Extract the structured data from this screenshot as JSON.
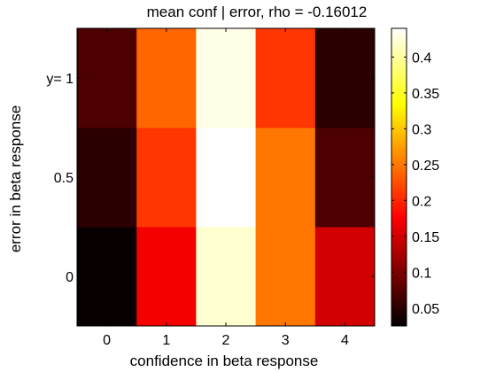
{
  "chart_data": {
    "type": "heatmap",
    "title": "mean conf | error, rho = -0.16012",
    "xlabel": "confidence in beta response",
    "ylabel": "error in beta response",
    "x_categories": [
      "0",
      "1",
      "2",
      "3",
      "4"
    ],
    "y_categories": [
      "0",
      "0.5",
      "y= 1"
    ],
    "values": [
      [
        0.03,
        0.17,
        0.42,
        0.25,
        0.15
      ],
      [
        0.05,
        0.21,
        0.44,
        0.25,
        0.07
      ],
      [
        0.07,
        0.24,
        0.43,
        0.21,
        0.05
      ]
    ],
    "colormap": "hot",
    "clim": [
      0.025,
      0.44
    ],
    "colorbar_ticks": [
      0.05,
      0.1,
      0.15,
      0.2,
      0.25,
      0.3,
      0.35,
      0.4
    ],
    "colorbar_tick_labels": [
      "0.05",
      "0.1",
      "0.15",
      "0.2",
      "0.25",
      "0.3",
      "0.35",
      "0.4"
    ],
    "grid": false
  }
}
